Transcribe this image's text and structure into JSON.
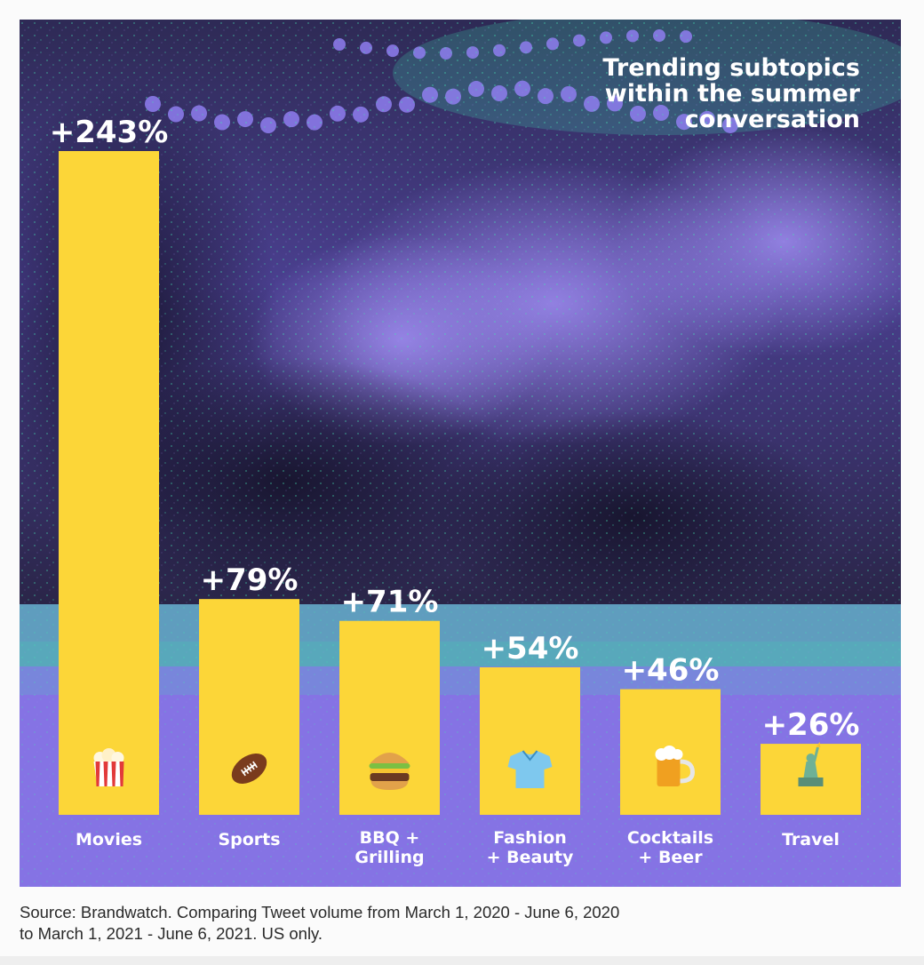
{
  "colors": {
    "bar": "#fcd638",
    "photo_dark": "#1c1a33",
    "photo_purple": "#7b6ad6",
    "ground_purple": "#8774e6",
    "teal": "#3fe0b0",
    "label_text": "#ffffff"
  },
  "chart_data": {
    "type": "bar",
    "title": "Trending subtopics within the summer conversation",
    "title_lines": [
      "Trending subtopics",
      "within the summer",
      "conversation"
    ],
    "categories": [
      "Movies",
      "Sports",
      "BBQ + Grilling",
      "Fashion + Beauty",
      "Cocktails + Beer",
      "Travel"
    ],
    "category_lines": [
      [
        "Movies"
      ],
      [
        "Sports"
      ],
      [
        "BBQ +",
        "Grilling"
      ],
      [
        "Fashion",
        "+ Beauty"
      ],
      [
        "Cocktails",
        "+ Beer"
      ],
      [
        "Travel"
      ]
    ],
    "values": [
      243,
      79,
      71,
      54,
      46,
      26
    ],
    "data_labels": [
      "+243%",
      "+79%",
      "+71%",
      "+54%",
      "+46%",
      "+26%"
    ],
    "icons": [
      "popcorn-icon",
      "football-icon",
      "hamburger-icon",
      "tshirt-icon",
      "beer-mug-icon",
      "statue-of-liberty-icon"
    ],
    "xlabel": "",
    "ylabel": "",
    "grid": false,
    "legend": "none"
  },
  "source_lines": [
    "Source: Brandwatch. Comparing Tweet volume from March 1, 2020 - June 6, 2020",
    "to March 1, 2021 - June 6, 2021. US only."
  ]
}
